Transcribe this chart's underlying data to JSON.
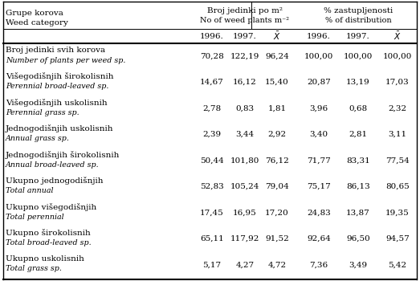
{
  "col_header_line1_left": "Broj jedinki po m²",
  "col_header_line2_left": "No of weed plants m⁻²",
  "col_header_line1_right": "% zastupljenosti",
  "col_header_line2_right": "% of distribution",
  "col_header_years": [
    "1996.",
    "1997.",
    "X_bar",
    "1996.",
    "1997.",
    "X_bar"
  ],
  "left_header_line1": "Grupe korova",
  "left_header_line2": "Weed category",
  "rows": [
    {
      "label_sr": "Broj jedinki svih korova",
      "label_en": "Number of plants per weed sp.",
      "values": [
        "70,28",
        "122,19",
        "96,24",
        "100,00",
        "100,00",
        "100,00"
      ]
    },
    {
      "label_sr": "Višegodišnjih širokolisnih",
      "label_en": "Perennial broad-leaved sp.",
      "values": [
        "14,67",
        "16,12",
        "15,40",
        "20,87",
        "13,19",
        "17,03"
      ]
    },
    {
      "label_sr": "Višegodišnjih uskolisnih",
      "label_en": "Perennial grass sp.",
      "values": [
        "2,78",
        "0,83",
        "1,81",
        "3,96",
        "0,68",
        "2,32"
      ]
    },
    {
      "label_sr": "Jednogodišnjih uskolisnih",
      "label_en": "Annual grass sp.",
      "values": [
        "2,39",
        "3,44",
        "2,92",
        "3,40",
        "2,81",
        "3,11"
      ]
    },
    {
      "label_sr": "Jednogodišnjih širokolisnih",
      "label_en": "Annual broad-leaved sp.",
      "values": [
        "50,44",
        "101,80",
        "76,12",
        "71,77",
        "83,31",
        "77,54"
      ]
    },
    {
      "label_sr": "Ukupno jednogodišnjih",
      "label_en": "Total annual",
      "values": [
        "52,83",
        "105,24",
        "79,04",
        "75,17",
        "86,13",
        "80,65"
      ]
    },
    {
      "label_sr": "Ukupno višegodišnjih",
      "label_en": "Total perennial",
      "values": [
        "17,45",
        "16,95",
        "17,20",
        "24,83",
        "13,87",
        "19,35"
      ]
    },
    {
      "label_sr": "Ukupno širokolisnih",
      "label_en": "Total broad-leaved sp.",
      "values": [
        "65,11",
        "117,92",
        "91,52",
        "92,64",
        "96,50",
        "94,57"
      ]
    },
    {
      "label_sr": "Ukupno uskolisnih",
      "label_en": "Total grass sp.",
      "values": [
        "5,17",
        "4,27",
        "4,72",
        "7,36",
        "3,49",
        "5,42"
      ]
    }
  ],
  "background_color": "#ffffff",
  "text_color": "#000000",
  "font_size_header": 7.5,
  "font_size_body_sr": 7.5,
  "font_size_body_en": 6.8,
  "font_size_data": 7.5
}
